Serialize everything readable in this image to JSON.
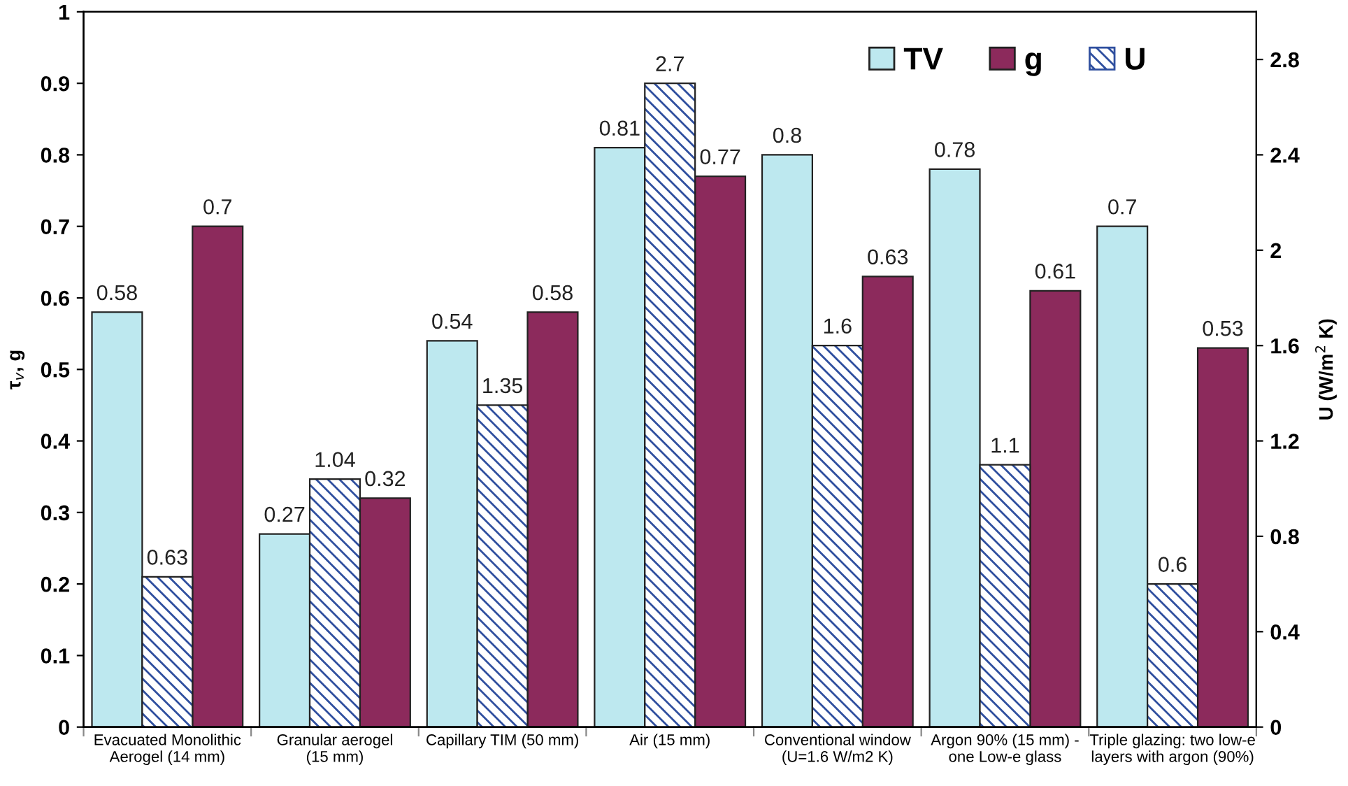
{
  "chart_data": {
    "type": "bar",
    "ylabel": "τ$_{v}$, g",
    "y2label": "U (W/m$^{2}$ K)",
    "categories": [
      "Evacuated Monolithic\nAerogel (14 mm)",
      "Granular aerogel\n(15 mm)",
      "Capillary TIM (50 mm)",
      "Air (15 mm)",
      "Conventional window\n(U=1.6 W/m2 K)",
      "Argon 90% (15 mm) -\none Low-e glass",
      "Triple glazing: two low-e\nlayers with argon (90%)"
    ],
    "series": [
      {
        "name": "TV",
        "color": "#bde8ef",
        "values": [
          0.58,
          0.27,
          0.54,
          0.81,
          0.8,
          0.78,
          0.7
        ]
      },
      {
        "name": "g",
        "color": "#8c2a5c",
        "values": [
          0.7,
          0.32,
          0.58,
          0.77,
          0.63,
          0.61,
          0.53
        ]
      },
      {
        "name": "U",
        "color": "#2f4f9f",
        "axis": "y2",
        "values": [
          0.63,
          1.04,
          1.35,
          2.7,
          1.6,
          1.1,
          0.6
        ]
      }
    ],
    "ylim": [
      0,
      1
    ],
    "yticks": [
      0,
      0.1,
      0.2,
      0.3,
      0.4,
      0.5,
      0.6,
      0.7,
      0.8,
      0.9,
      1
    ],
    "y2lim": [
      0,
      3
    ],
    "y2ticks": [
      0,
      0.4,
      0.8,
      1.2,
      1.6,
      2,
      2.4,
      2.8
    ],
    "data_labels": true,
    "legend": "top right",
    "grid": false
  }
}
